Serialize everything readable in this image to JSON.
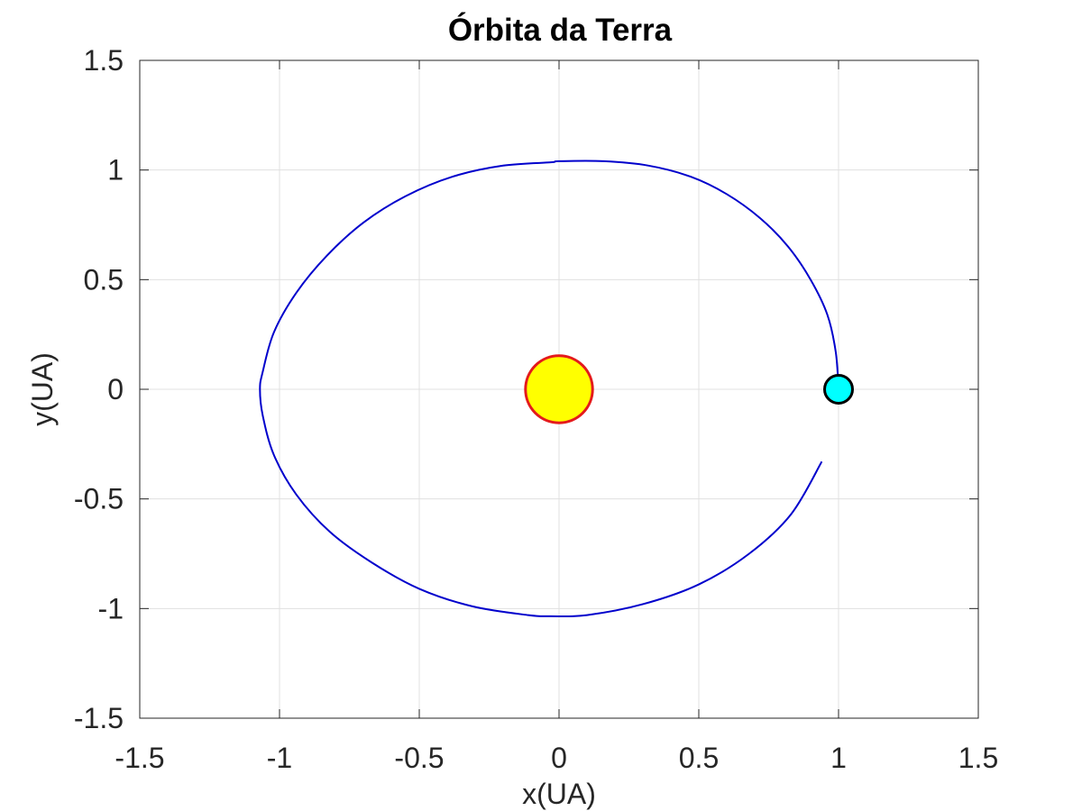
{
  "chart_data": {
    "type": "line",
    "title": "Órbita da Terra",
    "xlabel": "x(UA)",
    "ylabel": "y(UA)",
    "xlim": [
      -1.5,
      1.5
    ],
    "ylim": [
      -1.5,
      1.5
    ],
    "x_ticks": [
      -1.5,
      -1,
      -0.5,
      0,
      0.5,
      1,
      1.5
    ],
    "y_ticks": [
      -1.5,
      -1,
      -0.5,
      0,
      0.5,
      1,
      1.5
    ],
    "x_tick_labels": [
      "-1.5",
      "-1",
      "-0.5",
      "0",
      "0.5",
      "1",
      "1.5"
    ],
    "y_tick_labels": [
      "-1.5",
      "-1",
      "-0.5",
      "0",
      "0.5",
      "1",
      "1.5"
    ],
    "grid": true,
    "box": true,
    "colors": {
      "orbit": "#0000cc",
      "sun_fill": "#ffff00",
      "sun_edge": "#e41a1c",
      "earth_fill": "#00ffff",
      "earth_edge": "#000000",
      "grid": "#e0e0e0",
      "axes": "#262626"
    },
    "series": [
      {
        "points": [
          [
            1.0,
            0.0
          ],
          [
            0.99,
            0.17
          ],
          [
            0.96,
            0.34
          ],
          [
            0.9,
            0.5
          ],
          [
            0.82,
            0.65
          ],
          [
            0.72,
            0.78
          ],
          [
            0.6,
            0.89
          ],
          [
            0.47,
            0.97
          ],
          [
            0.32,
            1.02
          ],
          [
            0.16,
            1.04
          ],
          [
            0.0,
            1.04
          ],
          [
            -0.03,
            1.035
          ],
          [
            -0.2,
            1.02
          ],
          [
            -0.38,
            0.97
          ],
          [
            -0.55,
            0.88
          ],
          [
            -0.7,
            0.76
          ],
          [
            -0.83,
            0.61
          ],
          [
            -0.94,
            0.44
          ],
          [
            -1.02,
            0.26
          ],
          [
            -1.06,
            0.08
          ],
          [
            -1.07,
            0.0
          ],
          [
            -1.06,
            -0.12
          ],
          [
            -1.02,
            -0.3
          ],
          [
            -0.94,
            -0.48
          ],
          [
            -0.82,
            -0.65
          ],
          [
            -0.67,
            -0.79
          ],
          [
            -0.5,
            -0.91
          ],
          [
            -0.31,
            -0.99
          ],
          [
            -0.11,
            -1.03
          ],
          [
            -0.03,
            -1.035
          ],
          [
            0.1,
            -1.03
          ],
          [
            0.3,
            -0.98
          ],
          [
            0.5,
            -0.89
          ],
          [
            0.68,
            -0.75
          ],
          [
            0.83,
            -0.57
          ],
          [
            0.94,
            -0.33
          ]
        ]
      }
    ],
    "markers": [
      {
        "name": "sun",
        "x": 0,
        "y": 0,
        "radius": 0.12
      },
      {
        "name": "earth",
        "x": 1.0,
        "y": 0,
        "radius": 0.05
      }
    ]
  }
}
